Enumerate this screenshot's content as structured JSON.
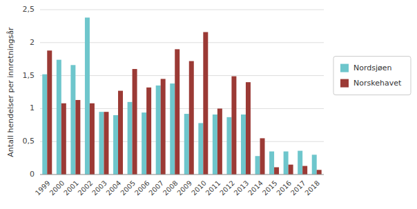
{
  "chart_data": {
    "type": "bar",
    "ylabel": "Antall hendelser per innretningsår",
    "categories": [
      "1999",
      "2000",
      "2001",
      "2002",
      "2003",
      "2004",
      "2005",
      "2006",
      "2007",
      "2008",
      "2009",
      "2010",
      "2011",
      "2012",
      "2013",
      "2014",
      "2015",
      "2016",
      "2017",
      "2018"
    ],
    "series": [
      {
        "name": "Nordsjøen",
        "color": "#6EC6CC",
        "values": [
          1.52,
          1.74,
          1.66,
          2.38,
          0.95,
          0.9,
          1.1,
          0.94,
          1.35,
          1.38,
          0.92,
          0.78,
          0.91,
          0.87,
          0.91,
          0.28,
          0.35,
          0.35,
          0.36,
          0.3
        ]
      },
      {
        "name": "Norskehavet",
        "color": "#9B3A35",
        "values": [
          1.88,
          1.08,
          1.13,
          1.08,
          0.95,
          1.27,
          1.6,
          1.32,
          1.45,
          1.9,
          1.72,
          2.16,
          1.0,
          1.49,
          1.4,
          0.55,
          0.11,
          0.15,
          0.13,
          0.07
        ]
      }
    ],
    "ylim": [
      0,
      2.5
    ],
    "yticks": [
      0,
      {
        "value": 0.5,
        "label": "0,5"
      },
      1,
      {
        "value": 1.5,
        "label": "1,5"
      },
      2,
      {
        "value": 2.5,
        "label": "2,5"
      }
    ],
    "grid": true,
    "legend": "right"
  }
}
